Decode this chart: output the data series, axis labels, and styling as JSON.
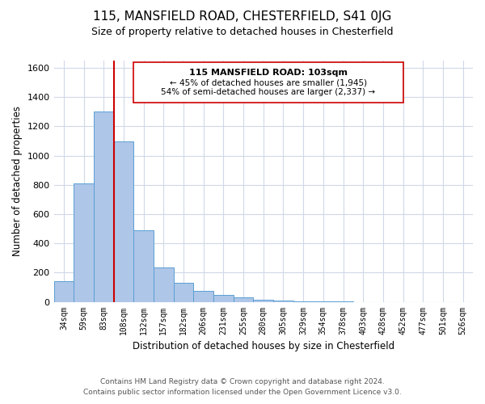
{
  "title": "115, MANSFIELD ROAD, CHESTERFIELD, S41 0JG",
  "subtitle": "Size of property relative to detached houses in Chesterfield",
  "xlabel": "Distribution of detached houses by size in Chesterfield",
  "ylabel": "Number of detached properties",
  "bar_color": "#aec6e8",
  "bar_edge_color": "#5a9fd4",
  "bins": [
    "34sqm",
    "59sqm",
    "83sqm",
    "108sqm",
    "132sqm",
    "157sqm",
    "182sqm",
    "206sqm",
    "231sqm",
    "255sqm",
    "280sqm",
    "305sqm",
    "329sqm",
    "354sqm",
    "378sqm",
    "403sqm",
    "428sqm",
    "452sqm",
    "477sqm",
    "501sqm",
    "526sqm"
  ],
  "values": [
    140,
    810,
    1300,
    1095,
    490,
    235,
    130,
    75,
    50,
    28,
    15,
    8,
    5,
    2,
    1,
    0,
    0,
    0,
    0,
    0,
    0
  ],
  "ylim": [
    0,
    1650
  ],
  "yticks": [
    0,
    200,
    400,
    600,
    800,
    1000,
    1200,
    1400,
    1600
  ],
  "vline_color": "#cc0000",
  "vline_x_index": 3,
  "annotation_title": "115 MANSFIELD ROAD: 103sqm",
  "annotation_line1": "← 45% of detached houses are smaller (1,945)",
  "annotation_line2": "54% of semi-detached houses are larger (2,337) →",
  "footer1": "Contains HM Land Registry data © Crown copyright and database right 2024.",
  "footer2": "Contains public sector information licensed under the Open Government Licence v3.0.",
  "background_color": "#ffffff",
  "grid_color": "#d0d8e8"
}
